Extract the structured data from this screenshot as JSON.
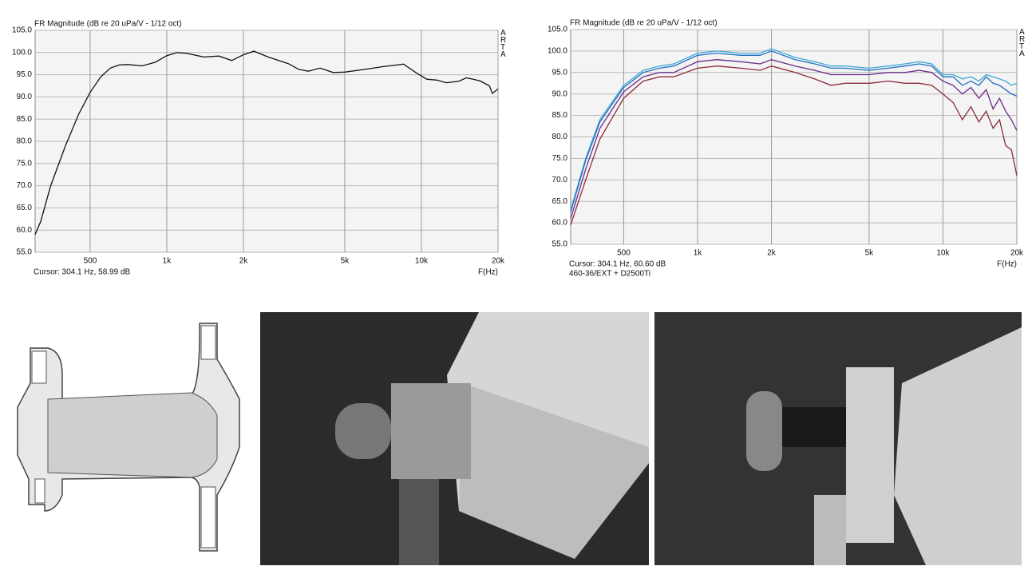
{
  "chart_data": [
    {
      "type": "line",
      "title": "FR Magnitude (dB re 20 uPa/V - 1/12 oct)",
      "xlabel": "F(Hz)",
      "cursor": "Cursor: 304.1 Hz, 58.99 dB",
      "watermark": "ARTA",
      "xscale": "log",
      "xlim": [
        304,
        20000
      ],
      "ylim": [
        55,
        105
      ],
      "grid": true,
      "xticks": [
        500,
        {
          "value": 1000,
          "label": "1k"
        },
        {
          "value": 2000,
          "label": "2k"
        },
        {
          "value": 5000,
          "label": "5k"
        },
        {
          "value": 10000,
          "label": "10k"
        },
        {
          "value": 20000,
          "label": "20k"
        }
      ],
      "yticks": [
        {
          "value": 55,
          "label": "55.0"
        },
        {
          "value": 60,
          "label": "60.0"
        },
        {
          "value": 65,
          "label": "65.0"
        },
        {
          "value": 70,
          "label": "70.0"
        },
        {
          "value": 75,
          "label": "75.0"
        },
        {
          "value": 80,
          "label": "80.0"
        },
        {
          "value": 85,
          "label": "85.0"
        },
        {
          "value": 90,
          "label": "90.0"
        },
        {
          "value": 95,
          "label": "95.0"
        },
        {
          "value": 100,
          "label": "100.0"
        },
        {
          "value": 105,
          "label": "105.0"
        }
      ],
      "x": [
        304,
        320,
        350,
        400,
        450,
        500,
        550,
        600,
        650,
        700,
        800,
        900,
        1000,
        1100,
        1200,
        1400,
        1600,
        1800,
        2000,
        2200,
        2500,
        3000,
        3300,
        3600,
        4000,
        4500,
        5000,
        6000,
        7000,
        8000,
        8500,
        9500,
        10500,
        11500,
        12500,
        14000,
        15000,
        16000,
        17000,
        18500,
        19000,
        20000
      ],
      "series": [
        {
          "color": "#111111",
          "values": [
            59,
            62,
            70,
            79,
            86,
            91,
            94.5,
            96.5,
            97.2,
            97.3,
            97,
            97.8,
            99.3,
            100,
            99.8,
            99,
            99.2,
            98.2,
            99.5,
            100.3,
            99,
            97.5,
            96.2,
            95.8,
            96.5,
            95.5,
            95.6,
            96.2,
            96.8,
            97.2,
            97.4,
            95.5,
            94,
            93.8,
            93.2,
            93.5,
            94.3,
            94,
            93.6,
            92.5,
            90.8,
            91.8
          ]
        }
      ]
    },
    {
      "type": "line",
      "title": "FR Magnitude (dB re 20 uPa/V - 1/12 oct)",
      "xlabel": "F(Hz)",
      "cursor": "Cursor: 304.1 Hz, 60.60 dB",
      "note": "460-36/EXT + D2500Ti",
      "watermark": "ARTA",
      "xscale": "log",
      "xlim": [
        304,
        20000
      ],
      "ylim": [
        55,
        105
      ],
      "grid": true,
      "xticks": [
        500,
        {
          "value": 1000,
          "label": "1k"
        },
        {
          "value": 2000,
          "label": "2k"
        },
        {
          "value": 5000,
          "label": "5k"
        },
        {
          "value": 10000,
          "label": "10k"
        },
        {
          "value": 20000,
          "label": "20k"
        }
      ],
      "yticks": [
        {
          "value": 55,
          "label": "55.0"
        },
        {
          "value": 60,
          "label": "60.0"
        },
        {
          "value": 65,
          "label": "65.0"
        },
        {
          "value": 70,
          "label": "70.0"
        },
        {
          "value": 75,
          "label": "75.0"
        },
        {
          "value": 80,
          "label": "80.0"
        },
        {
          "value": 85,
          "label": "85.0"
        },
        {
          "value": 90,
          "label": "90.0"
        },
        {
          "value": 95,
          "label": "95.0"
        },
        {
          "value": 100,
          "label": "100.0"
        },
        {
          "value": 105,
          "label": "105.0"
        }
      ],
      "x": [
        304,
        350,
        400,
        500,
        600,
        700,
        800,
        1000,
        1200,
        1500,
        1800,
        2000,
        2500,
        3000,
        3500,
        4000,
        5000,
        6000,
        7000,
        8000,
        9000,
        10000,
        11000,
        12000,
        13000,
        14000,
        15000,
        16000,
        17000,
        18000,
        19000,
        20000
      ],
      "series": [
        {
          "color": "#3fa7d6",
          "values": [
            63,
            75,
            84,
            92,
            95.5,
            96.5,
            97,
            99.5,
            100,
            99.5,
            99.5,
            100.5,
            98.5,
            97.5,
            96.5,
            96.5,
            96,
            96.5,
            97,
            97.5,
            97,
            94.5,
            94.5,
            93.5,
            94,
            93,
            94.5,
            94,
            93.5,
            93,
            92,
            92.5
          ]
        },
        {
          "color": "#1f6fc0",
          "values": [
            62.5,
            74.5,
            83.5,
            91.5,
            95,
            96,
            96.5,
            99,
            99.5,
            99,
            99,
            100,
            98,
            97,
            96,
            96,
            95.5,
            96,
            96.5,
            97,
            96.5,
            94,
            94,
            92,
            93,
            92,
            94,
            92.5,
            92,
            91,
            90,
            89.5
          ]
        },
        {
          "color": "#6a2a8a",
          "values": [
            61,
            72.5,
            82,
            90.5,
            94,
            95,
            95,
            97.5,
            98,
            97.5,
            97,
            98,
            96.5,
            95.5,
            94.5,
            94.5,
            94.5,
            95,
            95,
            95.5,
            95,
            93,
            92,
            90,
            91.5,
            89,
            91,
            86.5,
            89,
            86,
            84,
            81.5
          ]
        },
        {
          "color": "#8b2a3a",
          "values": [
            59.5,
            70,
            79.5,
            89,
            93,
            94,
            94,
            96,
            96.5,
            96,
            95.5,
            96.5,
            95,
            93.5,
            92,
            92.5,
            92.5,
            93,
            92.5,
            92.5,
            92,
            90,
            88,
            84,
            87,
            83.5,
            86,
            82,
            84,
            78,
            77,
            71
          ]
        }
      ]
    }
  ]
}
